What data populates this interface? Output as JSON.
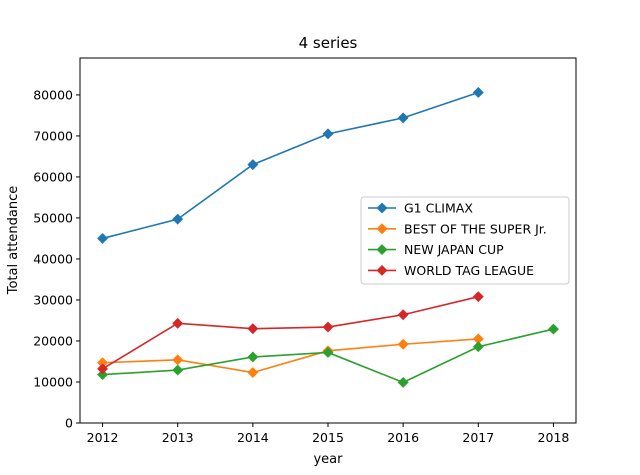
{
  "chart_data": {
    "type": "line",
    "title": "4 series",
    "xlabel": "year",
    "ylabel": "Total attendance",
    "x": [
      2012,
      2013,
      2014,
      2015,
      2016,
      2017,
      2018
    ],
    "xlim": [
      2011.7,
      2018.3
    ],
    "ylim": [
      0,
      89000
    ],
    "yticks": [
      0,
      10000,
      20000,
      30000,
      40000,
      50000,
      60000,
      70000,
      80000
    ],
    "grid": false,
    "legend_position": "center-right",
    "series": [
      {
        "name": "G1 CLIMAX",
        "color": "#1f77b4",
        "marker": "diamond",
        "x": [
          2012,
          2013,
          2014,
          2015,
          2016,
          2017
        ],
        "values": [
          45000,
          49700,
          63000,
          70500,
          74400,
          80600
        ]
      },
      {
        "name": "BEST OF THE SUPER Jr.",
        "color": "#ff7f0e",
        "marker": "diamond",
        "x": [
          2012,
          2013,
          2014,
          2015,
          2016,
          2017
        ],
        "values": [
          14700,
          15400,
          12300,
          17600,
          19200,
          20500
        ]
      },
      {
        "name": "NEW JAPAN CUP",
        "color": "#2ca02c",
        "marker": "diamond",
        "x": [
          2012,
          2013,
          2014,
          2015,
          2016,
          2017,
          2018
        ],
        "values": [
          11800,
          12900,
          16100,
          17200,
          9900,
          18600,
          22900
        ]
      },
      {
        "name": "WORLD TAG LEAGUE",
        "color": "#d62728",
        "marker": "diamond",
        "x": [
          2012,
          2013,
          2014,
          2015,
          2016,
          2017
        ],
        "values": [
          13200,
          24300,
          23000,
          23400,
          26400,
          30800
        ]
      }
    ]
  }
}
